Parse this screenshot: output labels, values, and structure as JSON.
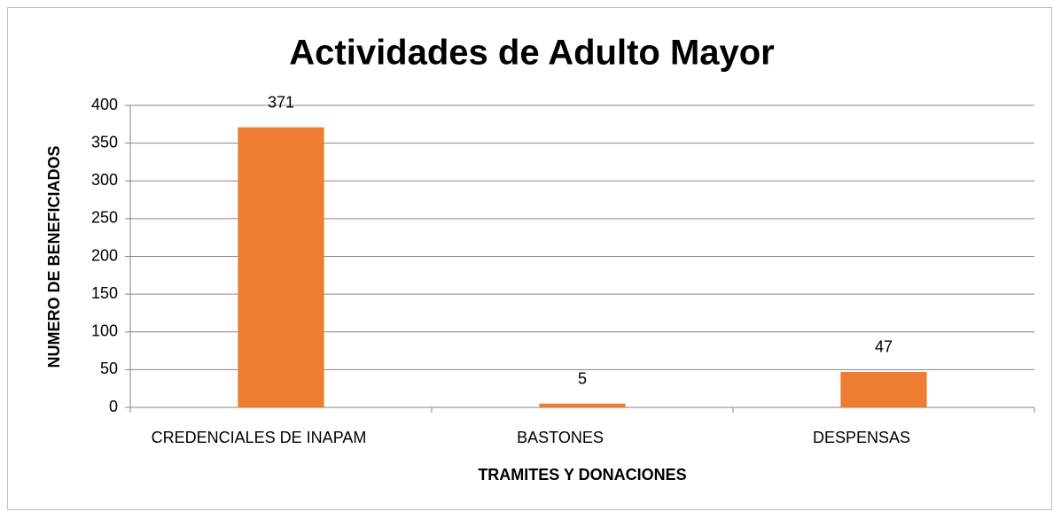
{
  "chart_data": {
    "type": "bar",
    "title": "Actividades de Adulto Mayor",
    "x_label": "TRAMITES Y DONACIONES",
    "y_label": "NUMERO DE BENEFICIADOS",
    "categories": [
      "CREDENCIALES DE INAPAM",
      "BASTONES",
      "DESPENSAS"
    ],
    "values": [
      371,
      5,
      47
    ],
    "color": "#ed7d31",
    "ylim": [
      0,
      400
    ],
    "yticks": [
      0,
      50,
      100,
      150,
      200,
      250,
      300,
      350,
      400
    ],
    "grid": true
  }
}
